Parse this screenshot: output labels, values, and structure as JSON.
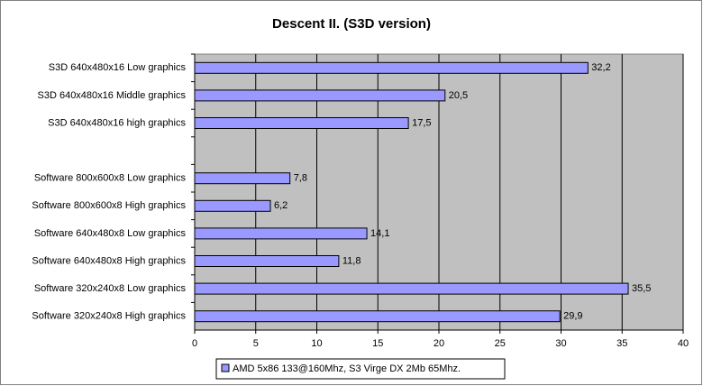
{
  "chart_data": {
    "type": "hbar",
    "title": "Descent II. (S3D version)",
    "categories": [
      "S3D 640x480x16 Low graphics",
      "S3D 640x480x16 Middle graphics",
      "S3D 640x480x16 high graphics",
      null,
      "Software 800x600x8 Low graphics",
      "Software 800x600x8 High graphics",
      "Software 640x480x8 Low graphics",
      "Software 640x480x8 High graphics",
      "Software 320x240x8 Low graphics",
      "Software 320x240x8 High graphics"
    ],
    "series": [
      {
        "name": "AMD 5x86 133@160Mhz, S3 Virge DX 2Mb 65Mhz.",
        "color": "#9999ff",
        "values": [
          32.2,
          20.5,
          17.5,
          null,
          7.8,
          6.2,
          14.1,
          11.8,
          35.5,
          29.9
        ],
        "value_labels": [
          "32,2",
          "20,5",
          "17,5",
          null,
          "7,8",
          "6,2",
          "14,1",
          "11,8",
          "35,5",
          "29,9"
        ]
      }
    ],
    "xlim": [
      0,
      40
    ],
    "xticks": [
      0,
      5,
      10,
      15,
      20,
      25,
      30,
      35,
      40
    ],
    "grid": true,
    "legend": "bottom"
  }
}
